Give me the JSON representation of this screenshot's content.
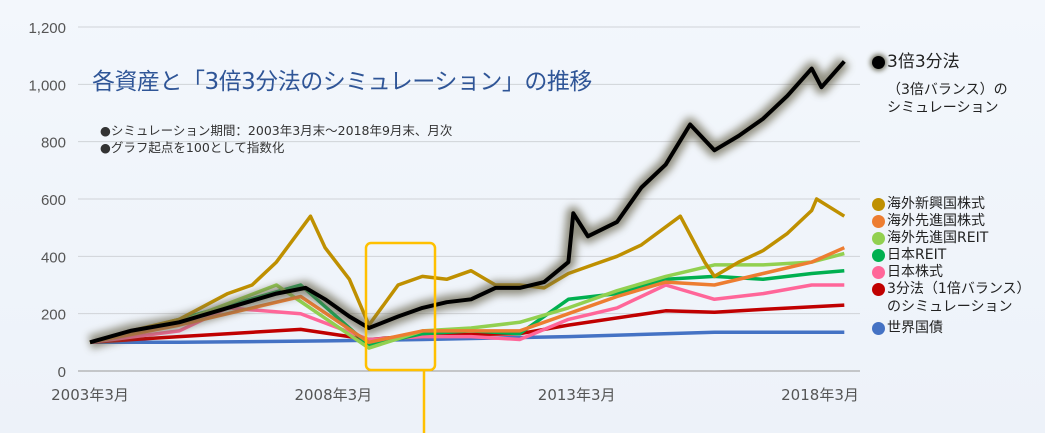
{
  "chart_data": {
    "type": "line",
    "title": "各資産と「3倍3分法のシミュレーション」の推移",
    "notes": [
      "●シミュレーション期間：2003年3月末～2018年9月末、月次",
      "●グラフ起点を100として指数化"
    ],
    "xlabel": "",
    "ylabel": "",
    "xlim": [
      2003.17,
      2018.75
    ],
    "ylim": [
      0,
      1200
    ],
    "yticks": [
      0,
      200,
      400,
      600,
      800,
      1000,
      1200
    ],
    "ytick_labels": [
      "0",
      "200",
      "400",
      "600",
      "800",
      "1,000",
      "1,200"
    ],
    "xticks": [
      2003.17,
      2008.17,
      2013.17,
      2018.17
    ],
    "xtick_labels": [
      "2003年3月",
      "2008年3月",
      "2013年3月",
      "2018年3月"
    ],
    "grid": true,
    "legend_placement": "right",
    "highlight_period": [
      2008.75,
      2010.1
    ],
    "series": [
      {
        "name": "世界国債",
        "color": "#4472c4",
        "x": [
          2003.17,
          2005,
          2008,
          2010,
          2013,
          2016,
          2018.67
        ],
        "values": [
          100,
          100,
          105,
          110,
          120,
          135,
          135
        ]
      },
      {
        "name": "3分法（1倍バランス）のシミュレーション",
        "color": "#c00000",
        "x": [
          2003.17,
          2005,
          2007.5,
          2008.9,
          2010,
          2012,
          2013,
          2015,
          2016,
          2017,
          2018.67
        ],
        "values": [
          100,
          120,
          145,
          110,
          125,
          130,
          160,
          210,
          205,
          215,
          230
        ]
      },
      {
        "name": "日本株式",
        "color": "#ff6699",
        "x": [
          2003.17,
          2005,
          2006,
          2007.5,
          2008.9,
          2010,
          2011,
          2012,
          2013,
          2014,
          2015,
          2016,
          2017,
          2018,
          2018.67
        ],
        "values": [
          100,
          140,
          220,
          200,
          110,
          120,
          120,
          110,
          180,
          220,
          300,
          250,
          270,
          300,
          300
        ]
      },
      {
        "name": "日本REIT",
        "color": "#00b050",
        "x": [
          2003.17,
          2005,
          2007.5,
          2008.9,
          2010,
          2011,
          2012,
          2013,
          2014,
          2015,
          2016,
          2017,
          2018,
          2018.67
        ],
        "values": [
          100,
          180,
          300,
          90,
          130,
          140,
          130,
          250,
          270,
          320,
          330,
          320,
          340,
          350
        ]
      },
      {
        "name": "海外先進国REIT",
        "color": "#92d050",
        "x": [
          2003.17,
          2005,
          2007,
          2008.9,
          2010,
          2011,
          2012,
          2013,
          2014,
          2015,
          2016,
          2017,
          2018,
          2018.67
        ],
        "values": [
          100,
          170,
          300,
          80,
          140,
          150,
          170,
          220,
          280,
          330,
          370,
          370,
          380,
          410
        ]
      },
      {
        "name": "海外先進国株式",
        "color": "#ed7d31",
        "x": [
          2003.17,
          2005,
          2007.5,
          2008.9,
          2010,
          2011,
          2012,
          2013,
          2014,
          2015,
          2016,
          2017,
          2018,
          2018.67
        ],
        "values": [
          100,
          160,
          260,
          100,
          140,
          140,
          140,
          200,
          260,
          310,
          300,
          340,
          380,
          430
        ]
      },
      {
        "name": "海外新興国株式",
        "color": "#bf9000",
        "x": [
          2003.17,
          2004,
          2005,
          2006,
          2006.5,
          2007,
          2007.7,
          2008,
          2008.5,
          2008.9,
          2009.2,
          2009.5,
          2010,
          2010.5,
          2011,
          2011.5,
          2012,
          2012.5,
          2013,
          2013.5,
          2014,
          2014.5,
          2015.3,
          2015.8,
          2016,
          2016.5,
          2017,
          2017.5,
          2018,
          2018.1,
          2018.67
        ],
        "values": [
          100,
          140,
          180,
          270,
          300,
          380,
          540,
          430,
          320,
          160,
          230,
          300,
          330,
          320,
          350,
          300,
          300,
          290,
          340,
          370,
          400,
          440,
          540,
          380,
          330,
          380,
          420,
          480,
          560,
          600,
          540
        ]
      },
      {
        "name": "3倍3分法（3倍バランス）のシミュレーション",
        "color": "#000000",
        "x": [
          2003.17,
          2004,
          2005,
          2006,
          2007,
          2007.6,
          2008,
          2008.5,
          2008.9,
          2009.5,
          2010,
          2010.5,
          2011,
          2011.5,
          2012,
          2012.5,
          2013,
          2013.1,
          2013.4,
          2014,
          2014.5,
          2015,
          2015.5,
          2016,
          2016.5,
          2017,
          2017.5,
          2018,
          2018.2,
          2018.67
        ],
        "values": [
          100,
          140,
          170,
          220,
          270,
          290,
          250,
          190,
          150,
          190,
          220,
          240,
          250,
          290,
          290,
          310,
          380,
          550,
          470,
          520,
          640,
          720,
          860,
          770,
          820,
          880,
          960,
          1055,
          990,
          1080
        ]
      }
    ]
  },
  "legend": [
    {
      "label": "3倍3分法",
      "sub": [
        "（3倍バランス）の",
        "シミュレーション"
      ],
      "color": "#000000"
    },
    {
      "label": "海外新興国株式",
      "color": "#bf9000"
    },
    {
      "label": "海外先進国株式",
      "color": "#ed7d31"
    },
    {
      "label": "海外先進国REIT",
      "color": "#92d050"
    },
    {
      "label": "日本REIT",
      "color": "#00b050"
    },
    {
      "label": "日本株式",
      "color": "#ff6699"
    },
    {
      "label": "3分法（1倍バランス）",
      "sub": [
        "のシミュレーション"
      ],
      "color": "#c00000"
    },
    {
      "label": "世界国債",
      "color": "#4472c4"
    }
  ],
  "highlight_color": "#ffc000"
}
